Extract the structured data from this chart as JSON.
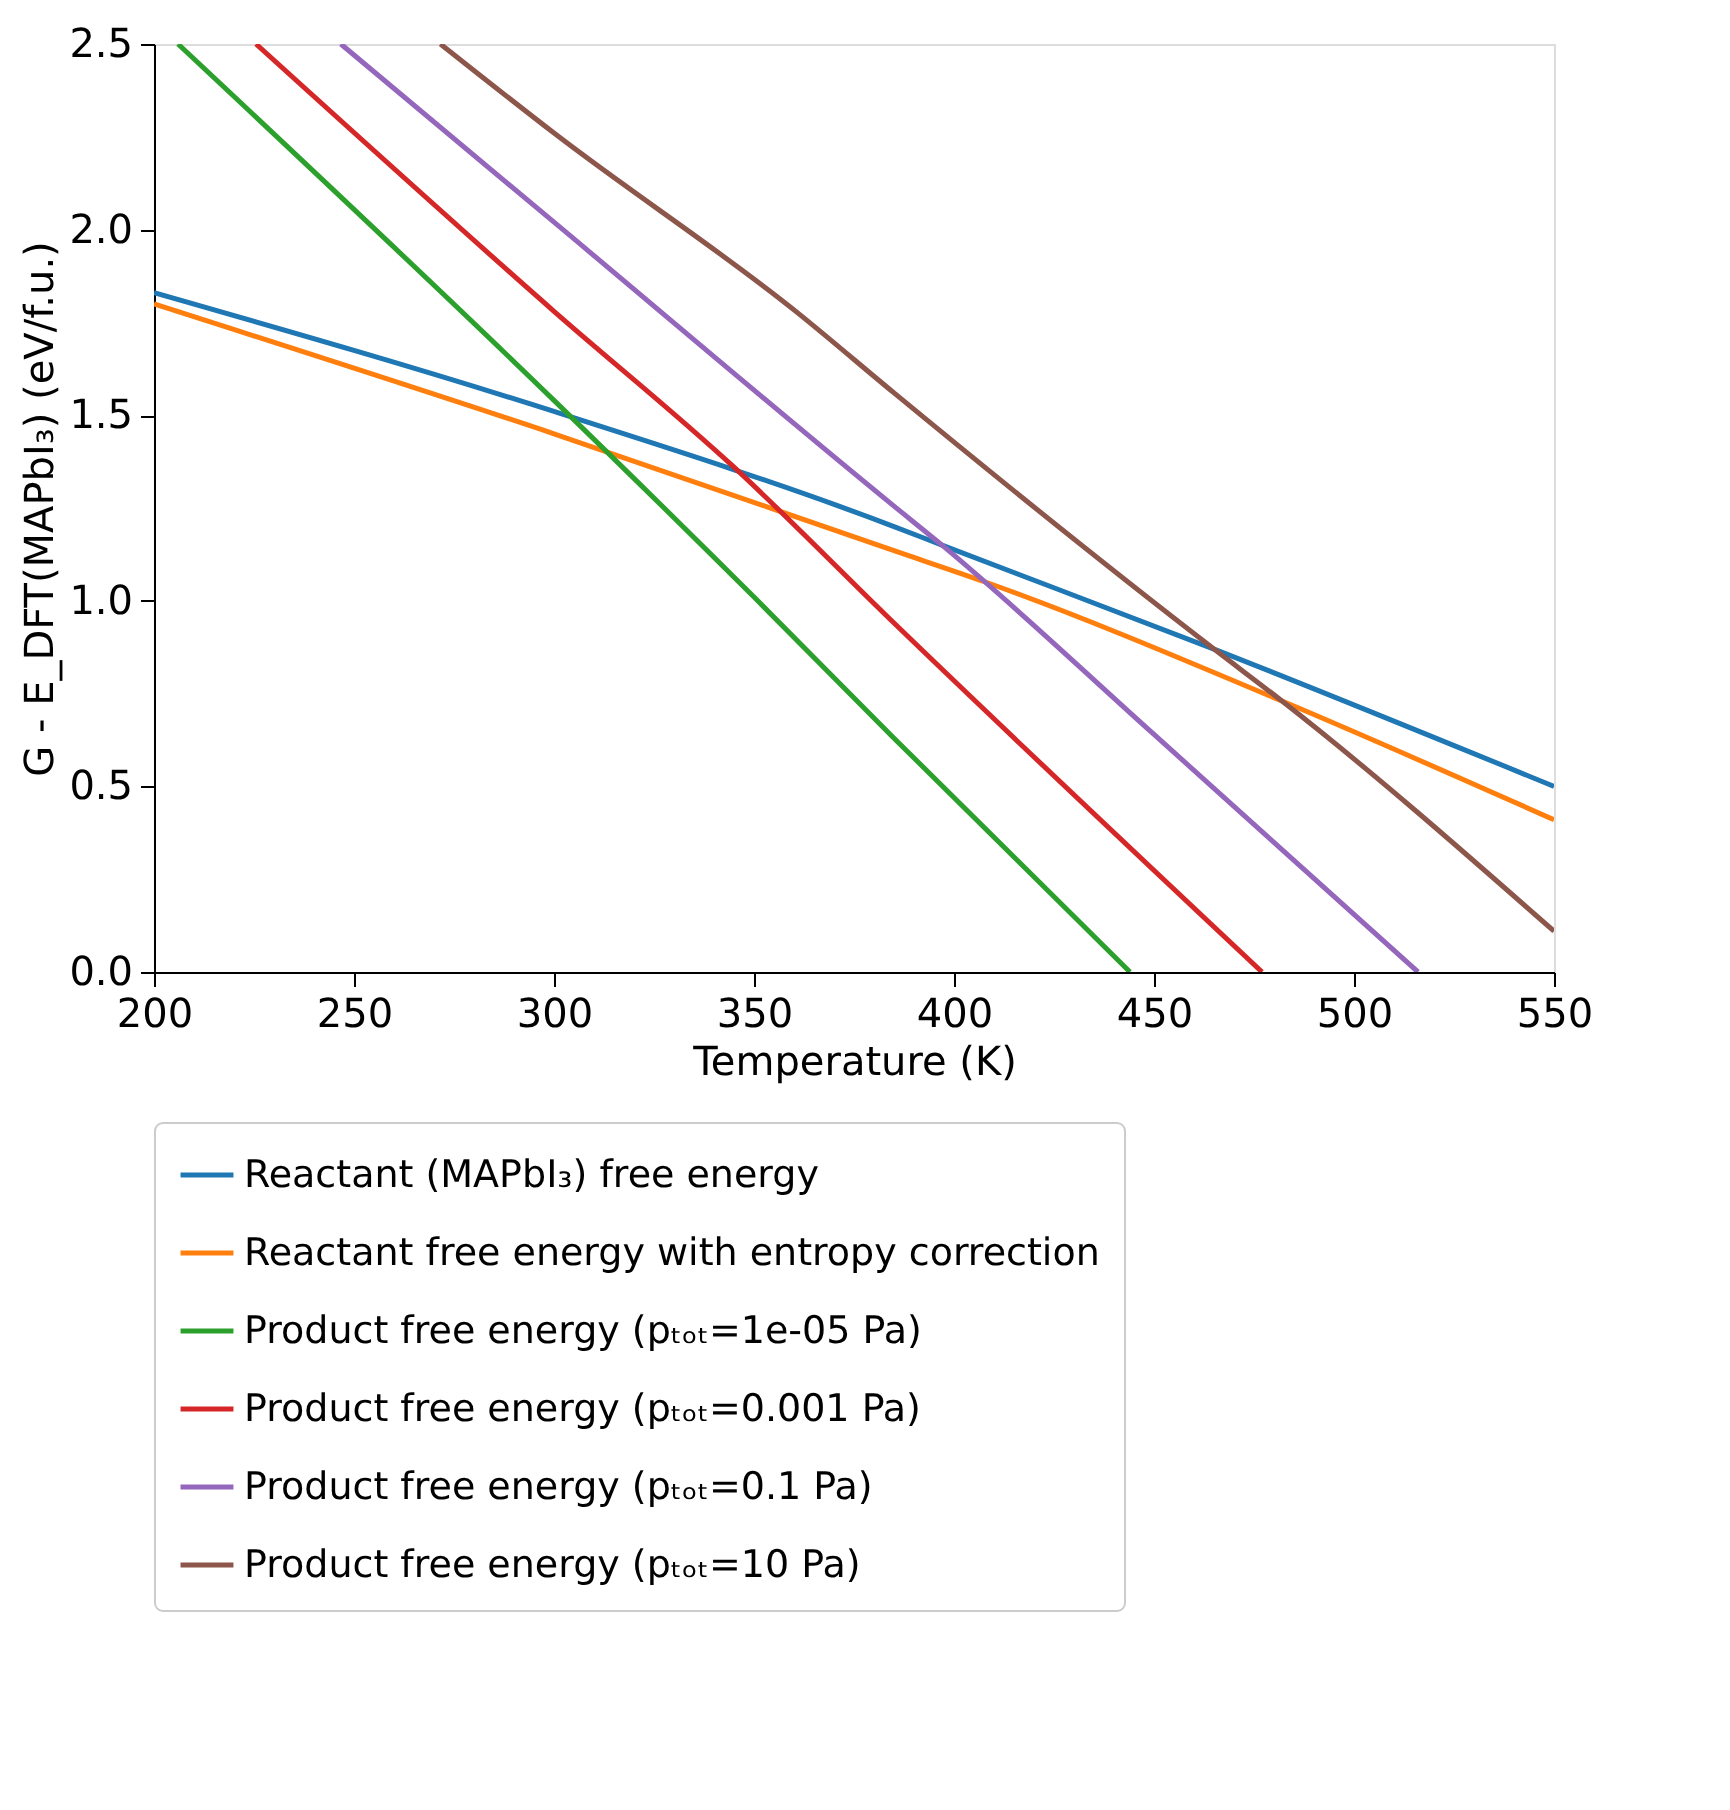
{
  "chart_data": {
    "type": "line",
    "xlabel": "Temperature (K)",
    "ylabel": "G - E_DFT(MAPbI₃) (eV/f.u.)",
    "xlim": [
      200,
      550
    ],
    "ylim": [
      0,
      2.5
    ],
    "xticks": [
      200,
      250,
      300,
      350,
      400,
      450,
      500,
      550
    ],
    "yticks": [
      {
        "value": 0,
        "label": "0.0"
      },
      {
        "value": 0.5,
        "label": "0.5"
      },
      {
        "value": 1,
        "label": "1.0"
      },
      {
        "value": 1.5,
        "label": "1.5"
      },
      {
        "value": 2,
        "label": "2.0"
      },
      {
        "value": 2.5,
        "label": "2.5"
      }
    ],
    "grid": false,
    "legend": "bottom",
    "marker": "none",
    "line_style": "solid",
    "series": [
      {
        "name": "Reactant (MAPbI₃) free energy",
        "color": "#1f77b4",
        "x": [
          200,
          300,
          385,
          397,
          465,
          550
        ],
        "values": [
          1.83,
          1.51,
          1.2,
          1.15,
          0.87,
          0.5
        ]
      },
      {
        "name": "Reactant free energy with entropy correction",
        "color": "#ff7f0e",
        "x": [
          200,
          300,
          385,
          408,
          482,
          550
        ],
        "values": [
          1.8,
          1.45,
          1.135,
          1.05,
          0.73,
          0.41
        ]
      },
      {
        "name": "Product free energy (pₜₒₜ=1e-05 Pa)",
        "color": "#2ca02c",
        "x": [
          206,
          300,
          350,
          385,
          444
        ],
        "values": [
          2.5,
          1.54,
          1.01,
          0.63,
          0
        ]
      },
      {
        "name": "Product free energy (pₜₒₜ=0.001 Pa)",
        "color": "#d62728",
        "x": [
          225.5,
          300,
          345,
          385,
          477
        ],
        "values": [
          2.5,
          1.78,
          1.36,
          0.94,
          0
        ]
      },
      {
        "name": "Product free energy (pₜₒₜ=0.1 Pa)",
        "color": "#9467bd",
        "x": [
          246.7,
          300,
          385,
          397,
          450,
          516
        ],
        "values": [
          2.5,
          2.02,
          1.255,
          1.15,
          0.64,
          0
        ]
      },
      {
        "name": "Product free energy (pₜₒₜ=10 Pa)",
        "color": "#8c564b",
        "x": [
          271.6,
          300,
          361,
          385,
          465,
          482,
          550
        ],
        "values": [
          2.5,
          2.26,
          1.775,
          1.56,
          0.87,
          0.73,
          0.11
        ]
      }
    ]
  }
}
